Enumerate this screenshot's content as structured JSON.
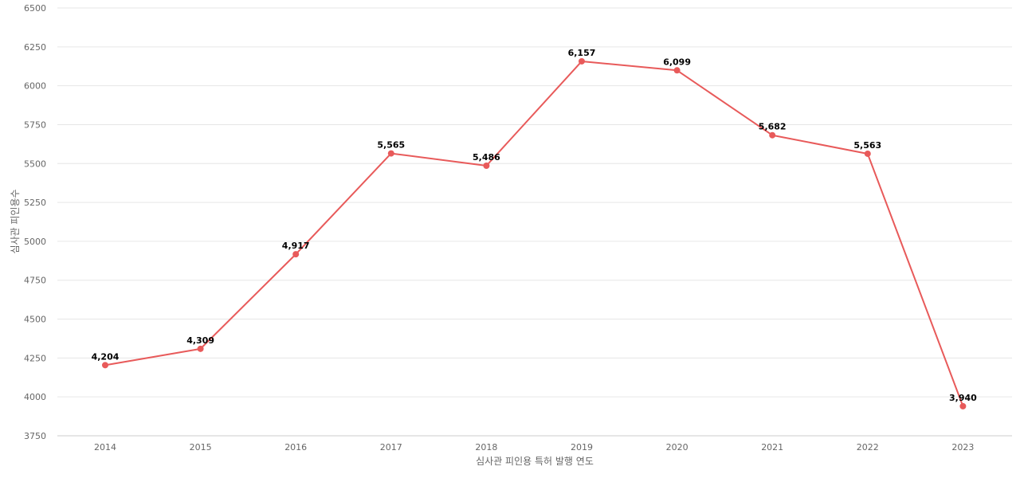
{
  "chart_data": {
    "type": "line",
    "title": "",
    "xlabel": "심사관 피인용 특허 발행 연도",
    "ylabel": "심사관 피인용수",
    "categories": [
      "2014",
      "2015",
      "2016",
      "2017",
      "2018",
      "2019",
      "2020",
      "2021",
      "2022",
      "2023"
    ],
    "series": [
      {
        "values": [
          4204,
          4309,
          4917,
          5565,
          5486,
          6157,
          6099,
          5682,
          5563,
          3940
        ],
        "data_labels": [
          "4,204",
          "4,309",
          "4,917",
          "5,565",
          "5,486",
          "6,157",
          "6,099",
          "5,682",
          "5,563",
          "3,940"
        ],
        "color": "#e85a5a"
      }
    ],
    "ylim": [
      3750,
      6500
    ],
    "yticks": [
      "6500",
      "6250",
      "6000",
      "5750",
      "5500",
      "5250",
      "5000",
      "4750",
      "4500",
      "4250",
      "4000",
      "3750"
    ],
    "grid": true,
    "legend": "none"
  }
}
